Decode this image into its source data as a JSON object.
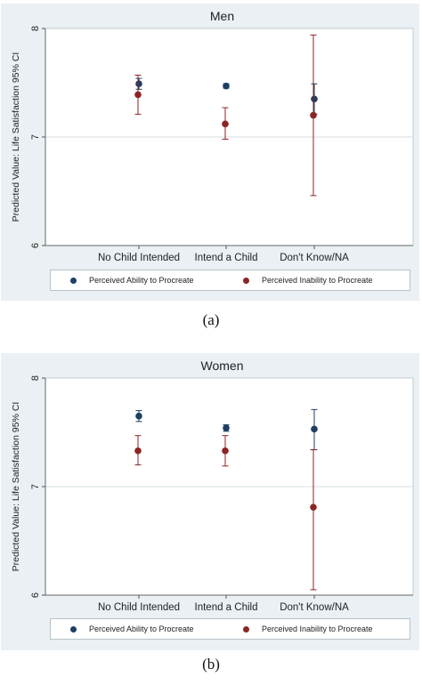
{
  "chart_data": [
    {
      "type": "scatter",
      "title": "Men",
      "ylabel": "Predicted Value: Life Satisfaction 95% CI",
      "xlabel": "",
      "categories": [
        "No Child Intended",
        "Intend a Child",
        "Don't Know/NA"
      ],
      "ylim": [
        6,
        8
      ],
      "yticks": [
        6,
        7,
        8
      ],
      "grid": true,
      "legend": "bottom",
      "series": [
        {
          "name": "Perceived Ability to Procreate",
          "color": "#1d3f63",
          "values": [
            7.49,
            7.47,
            7.35
          ],
          "ci_low": [
            7.44,
            7.45,
            7.21
          ],
          "ci_high": [
            7.54,
            7.49,
            7.49
          ]
        },
        {
          "name": "Perceived Inability to Procreate",
          "color": "#8b2525",
          "values": [
            7.39,
            7.12,
            7.2
          ],
          "ci_low": [
            7.21,
            6.98,
            6.46
          ],
          "ci_high": [
            7.57,
            7.27,
            7.94
          ]
        }
      ],
      "caption": "(a)"
    },
    {
      "type": "scatter",
      "title": "Women",
      "ylabel": "Predicted Value: Life Satisfaction 95% CI",
      "xlabel": "",
      "categories": [
        "No Child Intended",
        "Intend a Child",
        "Don't Know/NA"
      ],
      "ylim": [
        6,
        8
      ],
      "yticks": [
        6,
        7,
        8
      ],
      "grid": true,
      "legend": "bottom",
      "series": [
        {
          "name": "Perceived Ability to Procreate",
          "color": "#1d3f63",
          "values": [
            7.65,
            7.54,
            7.53
          ],
          "ci_low": [
            7.6,
            7.51,
            7.34
          ],
          "ci_high": [
            7.7,
            7.57,
            7.71
          ]
        },
        {
          "name": "Perceived Inability to Procreate",
          "color": "#8b2525",
          "values": [
            7.33,
            7.33,
            6.81
          ],
          "ci_low": [
            7.2,
            7.19,
            6.05
          ],
          "ci_high": [
            7.47,
            7.47,
            7.34
          ]
        }
      ],
      "caption": "(b)"
    }
  ]
}
